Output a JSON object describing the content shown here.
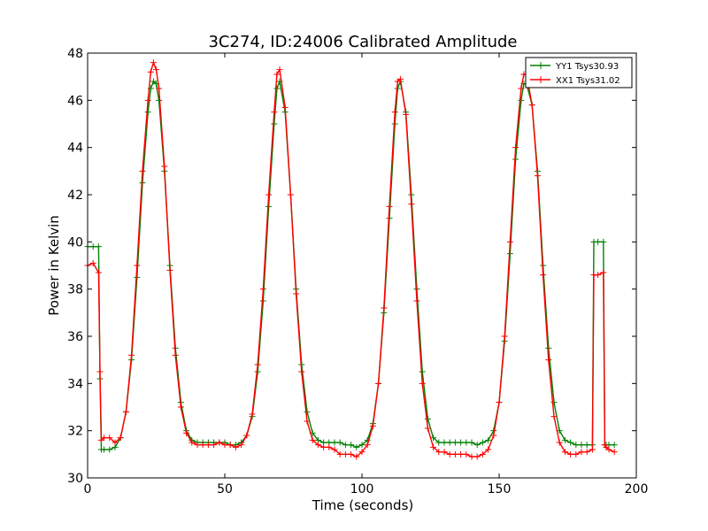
{
  "chart_data": {
    "type": "line",
    "title": "3C274, ID:24006 Calibrated Amplitude",
    "xlabel": "Time (seconds)",
    "ylabel": "Power in Kelvin",
    "xlim": [
      0,
      200
    ],
    "ylim": [
      30,
      48
    ],
    "xticks": [
      0,
      50,
      100,
      150,
      200
    ],
    "yticks": [
      30,
      32,
      34,
      36,
      38,
      40,
      42,
      44,
      46,
      48
    ],
    "grid": false,
    "legend_position": "top-right",
    "marker": "plus",
    "series": [
      {
        "name": "YY1 Tsys30.93",
        "color": "#008000",
        "x": [
          0,
          2,
          4,
          4.5,
          5,
          6,
          8,
          10,
          12,
          14,
          16,
          18,
          20,
          22,
          23,
          24,
          25,
          26,
          28,
          30,
          32,
          34,
          36,
          38,
          40,
          42,
          44,
          46,
          48,
          50,
          52,
          54,
          56,
          58,
          60,
          62,
          64,
          66,
          68,
          69,
          70,
          72,
          74,
          76,
          78,
          80,
          82,
          84,
          86,
          88,
          90,
          92,
          94,
          96,
          98,
          100,
          102,
          104,
          106,
          108,
          110,
          112,
          113,
          114,
          116,
          118,
          120,
          122,
          124,
          126,
          128,
          130,
          132,
          134,
          136,
          138,
          140,
          142,
          144,
          146,
          148,
          150,
          152,
          154,
          156,
          158,
          159,
          160,
          162,
          164,
          166,
          168,
          170,
          172,
          174,
          176,
          178,
          180,
          182,
          184,
          184.5,
          186,
          188,
          188.5,
          189,
          190,
          192
        ],
        "values": [
          39.8,
          39.8,
          39.8,
          34.2,
          31.2,
          31.2,
          31.2,
          31.3,
          31.7,
          32.8,
          35.0,
          38.5,
          42.5,
          45.5,
          46.5,
          46.8,
          46.7,
          46.0,
          43.0,
          39.0,
          35.5,
          33.2,
          32.0,
          31.6,
          31.5,
          31.5,
          31.5,
          31.5,
          31.5,
          31.5,
          31.4,
          31.4,
          31.5,
          31.8,
          32.6,
          34.5,
          37.5,
          41.5,
          45.0,
          46.5,
          46.8,
          45.5,
          42.0,
          38.0,
          34.8,
          32.8,
          31.9,
          31.6,
          31.5,
          31.5,
          31.5,
          31.5,
          31.4,
          31.4,
          31.3,
          31.4,
          31.6,
          32.3,
          34.0,
          37.0,
          41.0,
          45.0,
          46.5,
          46.8,
          45.5,
          42.0,
          38.0,
          34.5,
          32.5,
          31.7,
          31.5,
          31.5,
          31.5,
          31.5,
          31.5,
          31.5,
          31.5,
          31.4,
          31.5,
          31.6,
          32.0,
          33.2,
          35.8,
          39.5,
          43.5,
          46.0,
          46.7,
          46.7,
          45.8,
          43.0,
          39.0,
          35.5,
          33.2,
          32.0,
          31.6,
          31.5,
          31.4,
          31.4,
          31.4,
          31.4,
          40.0,
          40.0,
          40.0,
          31.4,
          31.4,
          31.4,
          31.4
        ]
      },
      {
        "name": "XX1 Tsys31.02",
        "color": "#ff0000",
        "x": [
          0,
          2,
          4,
          4.5,
          5,
          6,
          8,
          10,
          12,
          14,
          16,
          18,
          20,
          22,
          23,
          24,
          25,
          26,
          28,
          30,
          32,
          34,
          36,
          38,
          40,
          42,
          44,
          46,
          48,
          50,
          52,
          54,
          56,
          58,
          60,
          62,
          64,
          66,
          68,
          69,
          70,
          72,
          74,
          76,
          78,
          80,
          82,
          84,
          86,
          88,
          90,
          92,
          94,
          96,
          98,
          100,
          102,
          104,
          106,
          108,
          110,
          112,
          113,
          114,
          116,
          118,
          120,
          122,
          124,
          126,
          128,
          130,
          132,
          134,
          136,
          138,
          140,
          142,
          144,
          146,
          148,
          150,
          152,
          154,
          156,
          158,
          159,
          160,
          162,
          164,
          166,
          168,
          170,
          172,
          174,
          176,
          178,
          180,
          182,
          184,
          184.5,
          186,
          188,
          188.5,
          189,
          190,
          192
        ],
        "values": [
          39.0,
          39.1,
          38.7,
          34.5,
          31.6,
          31.7,
          31.7,
          31.5,
          31.7,
          32.8,
          35.2,
          39.0,
          43.0,
          46.0,
          47.2,
          47.6,
          47.3,
          46.5,
          43.2,
          38.8,
          35.2,
          33.0,
          31.9,
          31.5,
          31.4,
          31.4,
          31.4,
          31.4,
          31.5,
          31.4,
          31.4,
          31.3,
          31.4,
          31.8,
          32.7,
          34.8,
          38.0,
          42.0,
          45.5,
          47.1,
          47.3,
          45.7,
          42.0,
          37.8,
          34.5,
          32.4,
          31.6,
          31.4,
          31.3,
          31.3,
          31.2,
          31.0,
          31.0,
          31.0,
          30.9,
          31.1,
          31.4,
          32.2,
          34.0,
          37.2,
          41.5,
          45.5,
          46.8,
          46.9,
          45.4,
          41.6,
          37.5,
          34.0,
          32.1,
          31.3,
          31.1,
          31.1,
          31.0,
          31.0,
          31.0,
          31.0,
          30.9,
          30.9,
          31.0,
          31.2,
          31.8,
          33.2,
          36.0,
          40.0,
          44.0,
          46.5,
          47.1,
          47.1,
          45.8,
          42.8,
          38.6,
          35.0,
          32.6,
          31.5,
          31.1,
          31.0,
          31.0,
          31.1,
          31.1,
          31.2,
          38.6,
          38.6,
          38.7,
          31.4,
          31.3,
          31.2,
          31.1
        ]
      }
    ]
  }
}
